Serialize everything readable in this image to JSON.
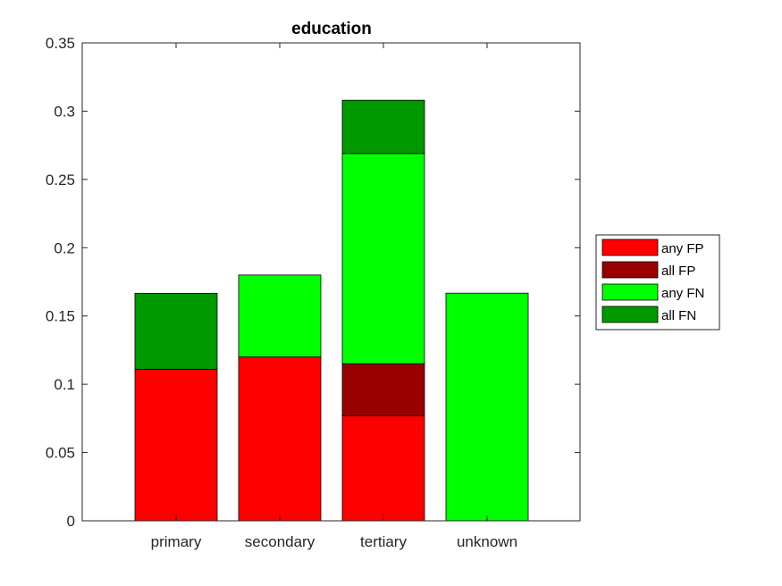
{
  "chart_data": {
    "type": "bar",
    "stacked": true,
    "title": "education",
    "xlabel": "",
    "ylabel": "",
    "categories": [
      "primary",
      "secondary",
      "tertiary",
      "unknown"
    ],
    "ylim": [
      0,
      0.35
    ],
    "yticks": [
      0,
      0.05,
      0.1,
      0.15,
      0.2,
      0.25,
      0.3,
      0.35
    ],
    "ytick_labels": [
      "0",
      "0.05",
      "0.1",
      "0.15",
      "0.2",
      "0.25",
      "0.3",
      "0.35"
    ],
    "grid": false,
    "legend_position": "outside-right",
    "series": [
      {
        "name": "any FP",
        "color": "#ff0000",
        "values": [
          0.111,
          0.12,
          0.077,
          0.0
        ]
      },
      {
        "name": "all FP",
        "color": "#990000",
        "values": [
          0.0,
          0.0,
          0.038,
          0.0
        ]
      },
      {
        "name": "any FN",
        "color": "#00ff00",
        "values": [
          0.0,
          0.06,
          0.154,
          0.1667
        ]
      },
      {
        "name": "all FN",
        "color": "#009900",
        "values": [
          0.0556,
          0.0,
          0.039,
          0.0
        ]
      }
    ]
  }
}
